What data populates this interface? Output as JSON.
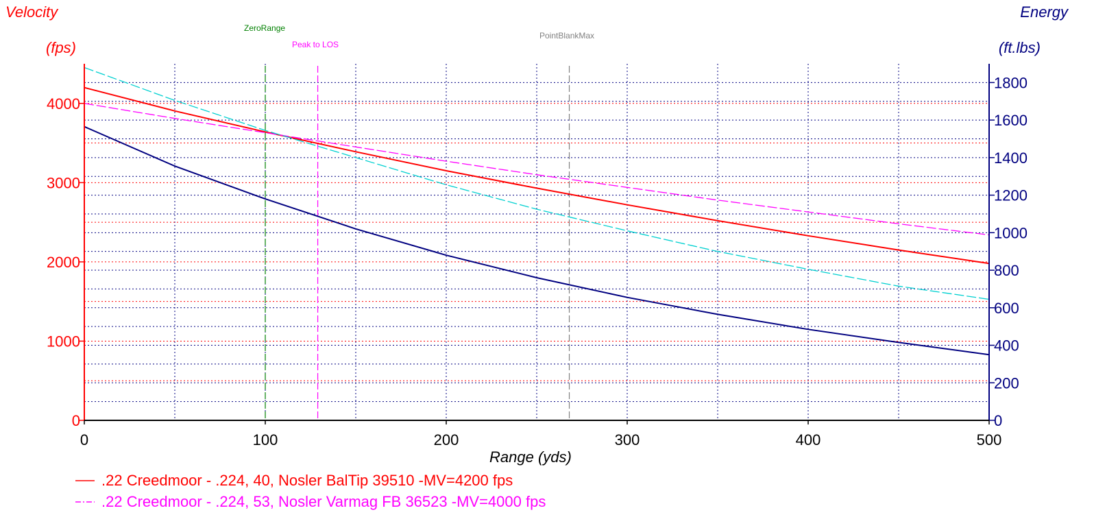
{
  "chart_data": {
    "type": "line",
    "left_axis": {
      "title": "Velocity",
      "unit": "(fps)",
      "range": [
        0,
        4500
      ],
      "ticks": [
        0,
        1000,
        2000,
        3000,
        4000
      ],
      "color": "#ff0000"
    },
    "right_axis": {
      "title": "Energy",
      "unit": "(ft.lbs)",
      "range": [
        0,
        1900
      ],
      "ticks": [
        0,
        200,
        400,
        600,
        800,
        1000,
        1200,
        1400,
        1600,
        1800
      ],
      "color": "#000080"
    },
    "x_axis": {
      "label": "Range (yds)",
      "range": [
        0,
        500
      ],
      "ticks": [
        0,
        100,
        200,
        300,
        400,
        500
      ]
    },
    "grid": true,
    "legend_position": "bottom-left",
    "markers": [
      {
        "label": "ZeroRange",
        "x": 100,
        "color": "#008000"
      },
      {
        "label": "Peak to LOS",
        "x": 129,
        "color": "#ff00ff"
      },
      {
        "label": "PointBlankMax",
        "x": 268,
        "color": "#808080"
      }
    ],
    "x": [
      0,
      50,
      100,
      150,
      200,
      250,
      300,
      350,
      400,
      450,
      500
    ],
    "series": [
      {
        "name": ".22 Creedmoor - .224, 40, Nosler BalTip 39510 -MV=4200 fps",
        "quantity": "velocity",
        "axis": "left",
        "color": "#ff0000",
        "dash": "solid",
        "values": [
          4200,
          3905,
          3640,
          3390,
          3150,
          2930,
          2720,
          2520,
          2330,
          2150,
          1980
        ]
      },
      {
        "name": ".22 Creedmoor - .224, 53, Nosler Varmag FB 36523 -MV=4000 fps",
        "quantity": "velocity",
        "axis": "left",
        "color": "#ff00ff",
        "dash": "dashed",
        "values": [
          4000,
          3810,
          3630,
          3450,
          3270,
          3100,
          2940,
          2780,
          2630,
          2480,
          2340
        ]
      },
      {
        "name": "",
        "quantity": "energy",
        "axis": "right",
        "color": "#000080",
        "dash": "solid",
        "values": [
          1565,
          1355,
          1180,
          1020,
          880,
          760,
          655,
          565,
          485,
          415,
          350
        ]
      },
      {
        "name": "",
        "quantity": "energy",
        "axis": "right",
        "color": "#00d0d0",
        "dash": "dashed",
        "values": [
          1880,
          1705,
          1545,
          1400,
          1255,
          1125,
          1010,
          900,
          805,
          715,
          645
        ]
      }
    ]
  }
}
